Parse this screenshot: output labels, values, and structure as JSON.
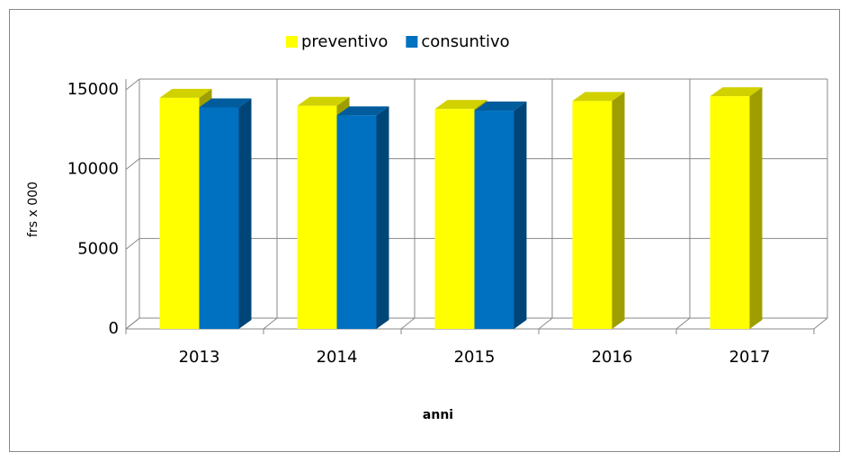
{
  "chart_data": {
    "type": "bar3d",
    "xlabel": "anni",
    "ylabel": "frs x 000",
    "categories": [
      "2013",
      "2014",
      "2015",
      "2016",
      "2017"
    ],
    "series": [
      {
        "name": "preventivo",
        "color": "#ffff00",
        "values": [
          14500,
          14000,
          13800,
          14300,
          14600
        ]
      },
      {
        "name": "consuntivo",
        "color": "#0070c0",
        "values": [
          13900,
          13400,
          13700,
          null,
          null
        ]
      }
    ],
    "ylim": [
      0,
      15000
    ],
    "yticks": [
      0,
      5000,
      10000,
      15000
    ],
    "grid": true,
    "legend": "top"
  }
}
